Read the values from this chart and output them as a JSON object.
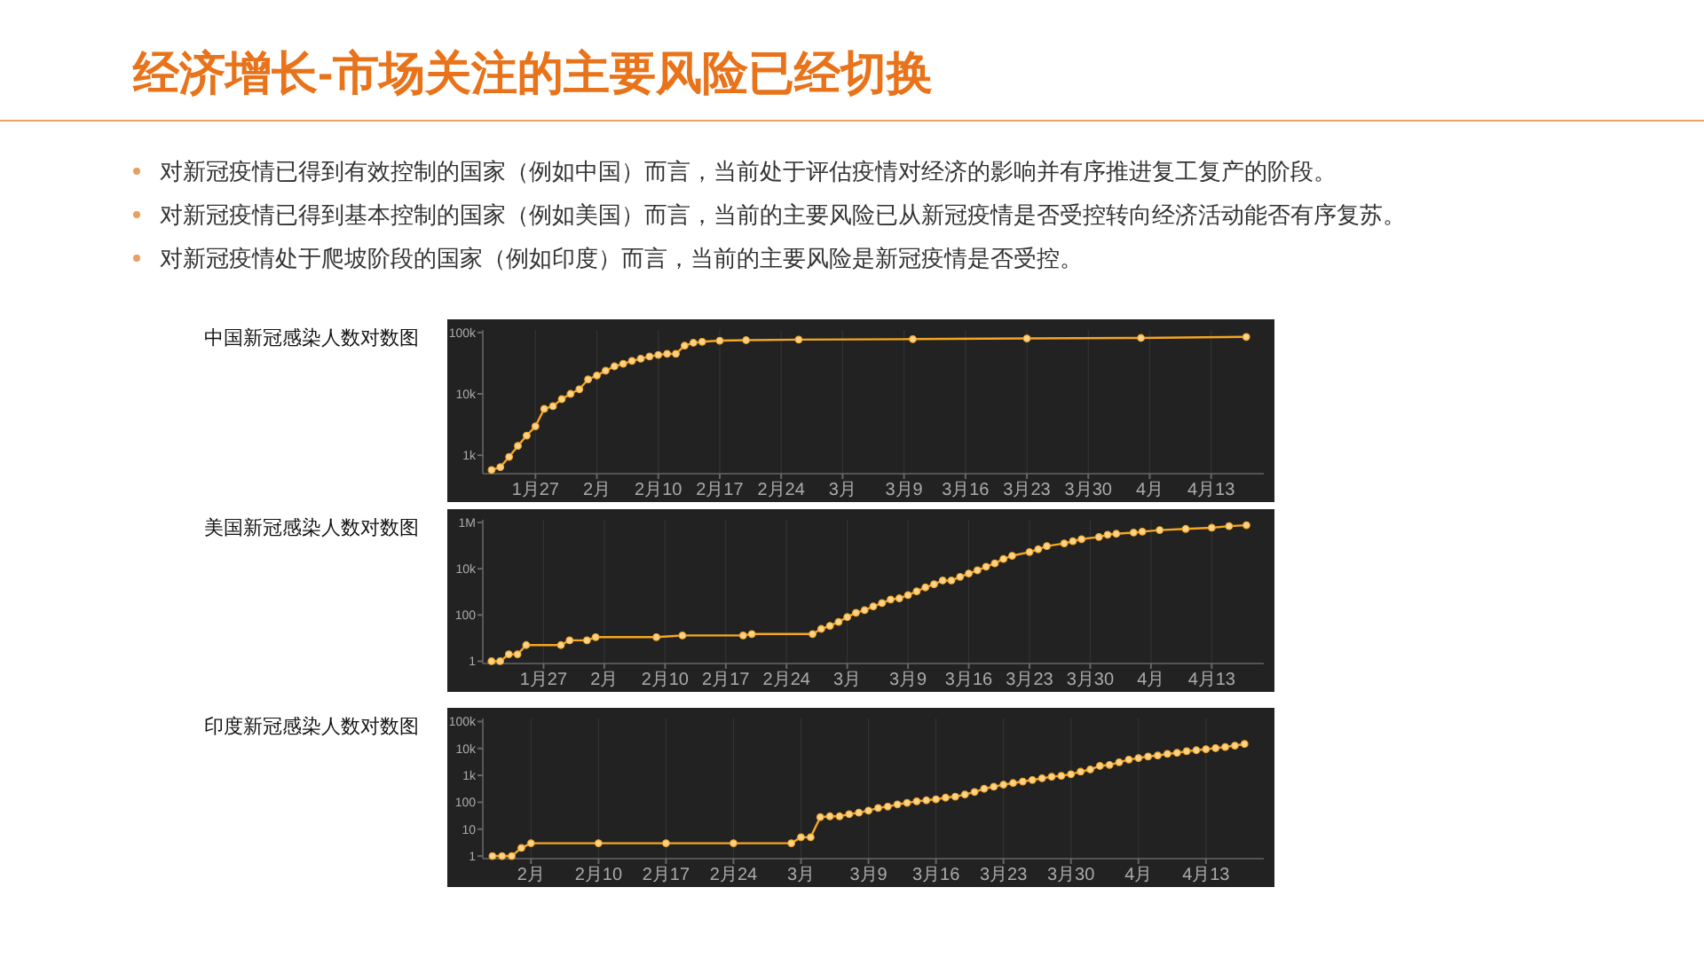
{
  "chart_data": [
    {
      "type": "other",
      "title": "经济增长-市场关注的主要风险已经切换",
      "annotations": [
        "对新冠疫情已得到有效控制的国家（例如中国）而言，当前处于评估疫情对经济的影响并有序推进复工复产的阶段。",
        "对新冠疫情已得到基本控制的国家（例如美国）而言，当前的主要风险已从新冠疫情是否受控转向经济活动能否有序复苏。",
        "对新冠疫情处于爬坡阶段的国家（例如印度）而言，当前的主要风险是新冠疫情是否受控。"
      ]
    },
    {
      "type": "line",
      "title": "中国新冠感染人数对数图",
      "log": "y",
      "grid": "x",
      "marker": "circle",
      "line_style": "solid",
      "xlim": [
        "--01-21",
        "--04-19"
      ],
      "ylim": [
        500,
        110000
      ],
      "xticks": [
        {
          "value": "--01-27",
          "label": "1月27"
        },
        {
          "value": "--02-03",
          "label": "2月"
        },
        {
          "value": "--02-10",
          "label": "2月10"
        },
        {
          "value": "--02-17",
          "label": "2月17"
        },
        {
          "value": "--02-24",
          "label": "2月24"
        },
        {
          "value": "--03-02",
          "label": "3月"
        },
        {
          "value": "--03-09",
          "label": "3月9"
        },
        {
          "value": "--03-16",
          "label": "3月16"
        },
        {
          "value": "--03-23",
          "label": "3月23"
        },
        {
          "value": "--03-30",
          "label": "3月30"
        },
        {
          "value": "--04-06",
          "label": "4月"
        },
        {
          "value": "--04-13",
          "label": "4月13"
        }
      ],
      "yticks": [
        {
          "value": 1000,
          "label": "1k"
        },
        {
          "value": 10000,
          "label": "10k"
        },
        {
          "value": 100000,
          "label": "100k"
        }
      ],
      "series": [
        {
          "color": "#f5a623",
          "x": [
            "--01-22",
            "--01-23",
            "--01-24",
            "--01-25",
            "--01-26",
            "--01-27",
            "--01-28",
            "--01-29",
            "--01-30",
            "--01-31",
            "--02-01",
            "--02-02",
            "--02-03",
            "--02-04",
            "--02-05",
            "--02-06",
            "--02-07",
            "--02-08",
            "--02-09",
            "--02-10",
            "--02-11",
            "--02-12",
            "--02-13",
            "--02-14",
            "--02-15",
            "--02-17",
            "--02-20",
            "--02-26",
            "--03-10",
            "--03-23",
            "--04-05",
            "--04-17"
          ],
          "values": [
            575,
            640,
            940,
            1420,
            2090,
            2960,
            5700,
            6300,
            8200,
            10000,
            11900,
            17200,
            19900,
            23900,
            28100,
            31000,
            34500,
            37400,
            40600,
            43200,
            45000,
            45000,
            61000,
            68000,
            70600,
            73600,
            75000,
            76600,
            78000,
            80000,
            81500,
            84900
          ]
        }
      ]
    },
    {
      "type": "line",
      "title": "美国新冠感染人数对数图",
      "log": "y",
      "grid": "x",
      "marker": "circle",
      "line_style": "solid",
      "xlim": [
        "--01-20",
        "--04-19"
      ],
      "ylim": [
        0.8,
        1300000
      ],
      "xticks": [
        {
          "value": "--01-27",
          "label": "1月27"
        },
        {
          "value": "--02-03",
          "label": "2月"
        },
        {
          "value": "--02-10",
          "label": "2月10"
        },
        {
          "value": "--02-17",
          "label": "2月17"
        },
        {
          "value": "--02-24",
          "label": "2月24"
        },
        {
          "value": "--03-02",
          "label": "3月"
        },
        {
          "value": "--03-09",
          "label": "3月9"
        },
        {
          "value": "--03-16",
          "label": "3月16"
        },
        {
          "value": "--03-23",
          "label": "3月23"
        },
        {
          "value": "--03-30",
          "label": "3月30"
        },
        {
          "value": "--04-06",
          "label": "4月"
        },
        {
          "value": "--04-13",
          "label": "4月13"
        }
      ],
      "yticks": [
        1,
        100,
        {
          "value": 10000,
          "label": "10k"
        },
        {
          "value": 1000000,
          "label": "1M"
        }
      ],
      "series": [
        {
          "color": "#f5a623",
          "x": [
            "--01-21",
            "--01-22",
            "--01-23",
            "--01-24",
            "--01-25",
            "--01-29",
            "--01-30",
            "--02-01",
            "--02-02",
            "--02-09",
            "--02-12",
            "--02-19",
            "--02-20",
            "--02-27",
            "--02-28",
            "--02-29",
            "--03-01",
            "--03-02",
            "--03-03",
            "--03-04",
            "--03-05",
            "--03-06",
            "--03-07",
            "--03-08",
            "--03-09",
            "--03-10",
            "--03-11",
            "--03-12",
            "--03-13",
            "--03-14",
            "--03-15",
            "--03-16",
            "--03-17",
            "--03-18",
            "--03-19",
            "--03-20",
            "--03-21",
            "--03-23",
            "--03-24",
            "--03-25",
            "--03-27",
            "--03-28",
            "--03-29",
            "--03-31",
            "--04-01",
            "--04-02",
            "--04-04",
            "--04-05",
            "--04-07",
            "--04-10",
            "--04-13",
            "--04-15",
            "--04-17"
          ],
          "values": [
            1,
            1,
            2,
            2,
            5,
            5,
            8,
            8,
            11,
            11,
            13,
            13,
            15,
            15,
            25,
            34,
            50,
            81,
            124,
            162,
            235,
            325,
            470,
            525,
            720,
            1050,
            1550,
            2130,
            3090,
            3090,
            4450,
            6200,
            8500,
            12300,
            17000,
            26300,
            36300,
            52500,
            69000,
            95000,
            124000,
            154000,
            190000,
            235000,
            295000,
            324000,
            363000,
            400000,
            468000,
            525000,
            589000,
            692000,
            759000
          ]
        }
      ]
    },
    {
      "type": "line",
      "title": "印度新冠感染人数对数图",
      "log": "y",
      "grid": "x",
      "marker": "circle",
      "line_style": "solid",
      "xlim": [
        "--01-29",
        "--04-19"
      ],
      "ylim": [
        0.8,
        130000
      ],
      "xticks": [
        {
          "value": "--02-03",
          "label": "2月"
        },
        {
          "value": "--02-10",
          "label": "2月10"
        },
        {
          "value": "--02-17",
          "label": "2月17"
        },
        {
          "value": "--02-24",
          "label": "2月24"
        },
        {
          "value": "--03-02",
          "label": "3月"
        },
        {
          "value": "--03-09",
          "label": "3月9"
        },
        {
          "value": "--03-16",
          "label": "3月16"
        },
        {
          "value": "--03-23",
          "label": "3月23"
        },
        {
          "value": "--03-30",
          "label": "3月30"
        },
        {
          "value": "--04-06",
          "label": "4月"
        },
        {
          "value": "--04-13",
          "label": "4月13"
        }
      ],
      "yticks": [
        1,
        10,
        100,
        {
          "value": 1000,
          "label": "1k"
        },
        {
          "value": 10000,
          "label": "10k"
        },
        {
          "value": 100000,
          "label": "100k"
        }
      ],
      "series": [
        {
          "color": "#f5a623",
          "x": [
            "--01-30",
            "--01-31",
            "--02-01",
            "--02-02",
            "--02-03",
            "--02-10",
            "--02-17",
            "--02-24",
            "--03-01",
            "--03-02",
            "--03-03",
            "--03-04",
            "--03-05",
            "--03-06",
            "--03-07",
            "--03-08",
            "--03-09",
            "--03-10",
            "--03-11",
            "--03-12",
            "--03-13",
            "--03-14",
            "--03-15",
            "--03-16",
            "--03-17",
            "--03-18",
            "--03-19",
            "--03-20",
            "--03-21",
            "--03-22",
            "--03-23",
            "--03-24",
            "--03-25",
            "--03-26",
            "--03-27",
            "--03-28",
            "--03-29",
            "--03-30",
            "--03-31",
            "--04-01",
            "--04-02",
            "--04-03",
            "--04-04",
            "--04-05",
            "--04-06",
            "--04-07",
            "--04-08",
            "--04-09",
            "--04-10",
            "--04-11",
            "--04-12",
            "--04-13",
            "--04-14",
            "--04-15",
            "--04-16",
            "--04-17"
          ],
          "values": [
            1,
            1,
            1,
            2,
            3,
            3,
            3,
            3,
            3,
            5,
            5,
            28,
            30,
            30,
            36,
            41,
            49,
            61,
            69,
            83,
            95,
            108,
            118,
            129,
            148,
            162,
            194,
            241,
            317,
            378,
            452,
            518,
            590,
            674,
            774,
            887,
            960,
            1100,
            1370,
            1650,
            2240,
            2450,
            3070,
            3860,
            4390,
            5040,
            5480,
            6290,
            6880,
            7900,
            8600,
            9400,
            10300,
            11300,
            12800,
            14700
          ]
        }
      ]
    }
  ]
}
